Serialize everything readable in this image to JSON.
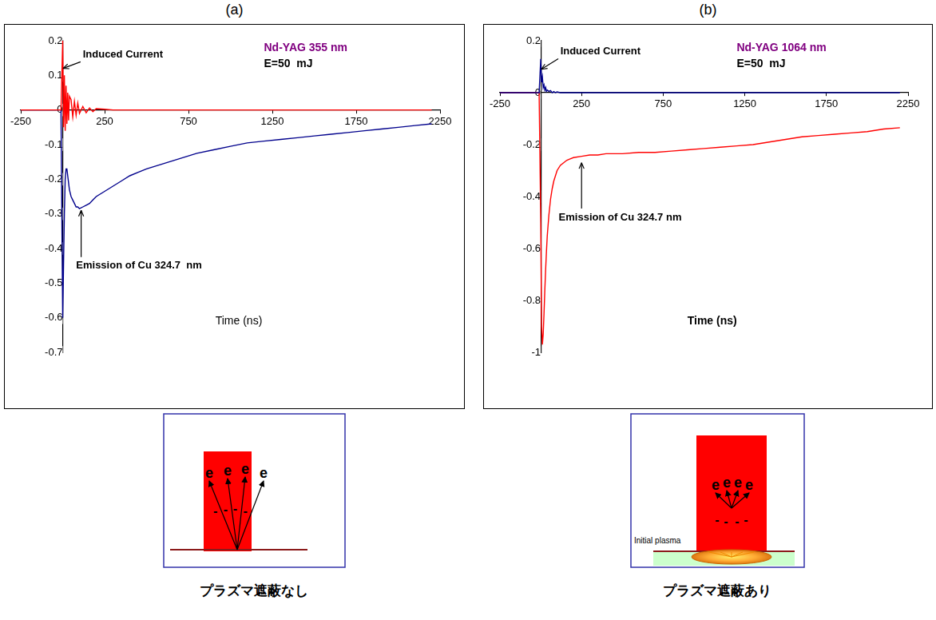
{
  "chart_data": [
    {
      "type": "line",
      "panel_label": "(a)",
      "title": "Nd-YAG 355 nm",
      "subtitle": "E=50  mJ",
      "xlabel": "Time (ns)",
      "x": [
        -250,
        -200,
        -150,
        -100,
        -50,
        -10,
        0,
        5,
        10,
        15,
        20,
        25,
        30,
        35,
        40,
        50,
        60,
        70,
        80,
        90,
        100,
        120,
        140,
        160,
        180,
        200,
        250,
        300,
        350,
        400,
        450,
        500,
        600,
        700,
        800,
        900,
        1000,
        1100,
        1200,
        1300,
        1400,
        1500,
        1600,
        1700,
        1800,
        1900,
        2000,
        2100,
        2200
      ],
      "series": [
        {
          "color": "#ff0000",
          "values": [
            0,
            0,
            0,
            0,
            0,
            0,
            0.2,
            -0.05,
            0.1,
            -0.06,
            0.07,
            -0.04,
            0.05,
            -0.03,
            0.04,
            0.03,
            -0.02,
            0.025,
            -0.015,
            0.02,
            -0.01,
            0.01,
            -0.008,
            0.006,
            -0.005,
            0.004,
            0.002,
            0,
            0,
            0,
            0,
            0,
            0,
            0,
            0,
            0,
            0,
            0,
            0,
            0,
            0,
            0,
            0,
            0,
            0,
            0,
            0,
            0,
            0
          ]
        },
        {
          "color": "#00008c",
          "values": [
            0,
            0,
            0,
            0,
            0,
            0,
            -0.6,
            -0.45,
            -0.3,
            -0.2,
            -0.17,
            -0.17,
            -0.19,
            -0.21,
            -0.23,
            -0.25,
            -0.26,
            -0.27,
            -0.28,
            -0.28,
            -0.285,
            -0.28,
            -0.275,
            -0.27,
            -0.26,
            -0.25,
            -0.235,
            -0.22,
            -0.205,
            -0.19,
            -0.18,
            -0.17,
            -0.155,
            -0.14,
            -0.125,
            -0.115,
            -0.105,
            -0.095,
            -0.09,
            -0.085,
            -0.08,
            -0.075,
            -0.07,
            -0.065,
            -0.06,
            -0.055,
            -0.05,
            -0.045,
            -0.04
          ]
        }
      ],
      "annotations": [
        {
          "text": "Induced Current",
          "x": 2,
          "y": 0.12,
          "text_x": 120,
          "text_y": 0.16
        },
        {
          "text": "Emission of Cu 324.7  nm",
          "x": 110,
          "y": -0.29,
          "text_x": 80,
          "text_y": -0.45
        }
      ],
      "xlim": [
        -250,
        2250
      ],
      "xticks": [
        -250,
        250,
        750,
        1250,
        1750,
        2250
      ],
      "ylim": [
        -0.7,
        0.2
      ],
      "yticks": [
        -0.7,
        -0.6,
        -0.5,
        -0.4,
        -0.3,
        -0.2,
        -0.1,
        0,
        0.1,
        0.2
      ],
      "grid": false
    },
    {
      "type": "line",
      "panel_label": "(b)",
      "title": "Nd-YAG 1064 nm",
      "subtitle": "E=50  mJ",
      "xlabel": "Time (ns)",
      "x": [
        -250,
        -200,
        -150,
        -100,
        -50,
        -10,
        0,
        5,
        10,
        15,
        20,
        25,
        30,
        35,
        40,
        50,
        60,
        70,
        80,
        90,
        100,
        120,
        140,
        160,
        180,
        200,
        250,
        300,
        350,
        400,
        450,
        500,
        600,
        700,
        800,
        900,
        1000,
        1100,
        1200,
        1300,
        1400,
        1500,
        1600,
        1700,
        1800,
        1900,
        2000,
        2100,
        2200
      ],
      "series": [
        {
          "color": "#00008c",
          "values": [
            0,
            0,
            0,
            0,
            0,
            0,
            0.13,
            0.04,
            0.06,
            0.02,
            0.03,
            0.01,
            0.02,
            0.005,
            0.01,
            0.005,
            0.008,
            0,
            0.004,
            0,
            0.003,
            0,
            0,
            0,
            0,
            0,
            0,
            0,
            0,
            0,
            0,
            0,
            0,
            0,
            0,
            0,
            0,
            0,
            0,
            0,
            0,
            0,
            0,
            0,
            0,
            0,
            0,
            0,
            0
          ]
        },
        {
          "color": "#ff0000",
          "values": [
            0,
            0,
            0,
            0,
            0,
            0,
            -0.5,
            -0.9,
            -0.97,
            -0.93,
            -0.85,
            -0.76,
            -0.68,
            -0.61,
            -0.55,
            -0.47,
            -0.41,
            -0.37,
            -0.34,
            -0.32,
            -0.3,
            -0.28,
            -0.27,
            -0.26,
            -0.255,
            -0.25,
            -0.245,
            -0.24,
            -0.24,
            -0.235,
            -0.235,
            -0.235,
            -0.23,
            -0.23,
            -0.225,
            -0.22,
            -0.215,
            -0.21,
            -0.205,
            -0.2,
            -0.19,
            -0.18,
            -0.17,
            -0.165,
            -0.16,
            -0.155,
            -0.15,
            -0.14,
            -0.135
          ]
        }
      ],
      "annotations": [
        {
          "text": "Induced Current",
          "x": 3,
          "y": 0.09,
          "text_x": 120,
          "text_y": 0.16
        },
        {
          "text": "Emission of Cu 324.7 nm",
          "x": 250,
          "y": -0.27,
          "text_x": 110,
          "text_y": -0.48
        }
      ],
      "xlim": [
        -250,
        2250
      ],
      "xticks": [
        -250,
        250,
        750,
        1250,
        1750,
        2250
      ],
      "ylim": [
        -1,
        0.2
      ],
      "yticks": [
        -1,
        -0.8,
        -0.6,
        -0.4,
        -0.2,
        0,
        0.2
      ],
      "grid": false
    }
  ],
  "diagrams": [
    {
      "electrons": [
        "e",
        "e",
        "e",
        "e"
      ],
      "charges": [
        "-",
        "-",
        "-",
        "-"
      ],
      "caption": "プラズマ遮蔽なし"
    },
    {
      "label": "Initial plasma",
      "electrons": [
        "e",
        "e",
        "e",
        "e"
      ],
      "charges": [
        "-",
        "-",
        "-",
        "-"
      ],
      "caption": "プラズマ遮蔽あり"
    }
  ]
}
